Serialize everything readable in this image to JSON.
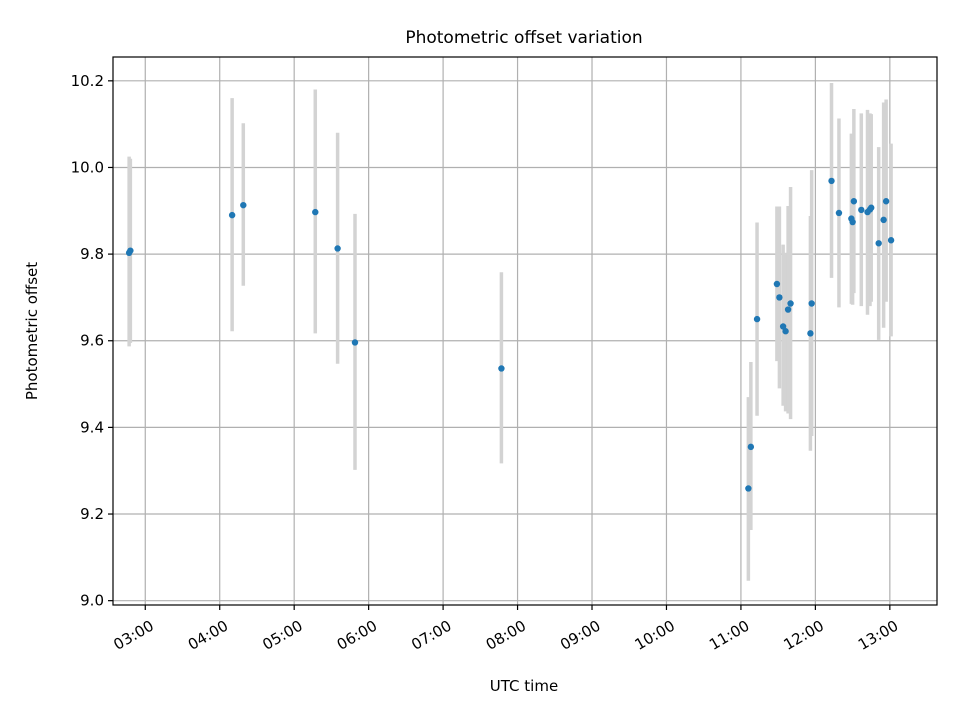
{
  "chart_data": {
    "type": "scatter",
    "title": "Photometric offset variation",
    "xlabel": "UTC time",
    "ylabel": "Photometric offset",
    "xlim": [
      "02:34",
      "13:38"
    ],
    "ylim": [
      8.99,
      10.255
    ],
    "x_ticks": [
      "03:00",
      "04:00",
      "05:00",
      "06:00",
      "07:00",
      "08:00",
      "09:00",
      "10:00",
      "11:00",
      "12:00",
      "13:00"
    ],
    "y_ticks": [
      "9.0",
      "9.2",
      "9.4",
      "9.6",
      "9.8",
      "10.0",
      "10.2"
    ],
    "grid": true,
    "errorbar_color": "#d3d3d3",
    "point_color": "#1f77b4",
    "series": [
      {
        "points": [
          {
            "time": "02:47",
            "y": 9.803,
            "lo": 9.587,
            "hi": 10.025
          },
          {
            "time": "02:48",
            "y": 9.808,
            "lo": 9.595,
            "hi": 10.02
          },
          {
            "time": "04:10",
            "y": 9.89,
            "lo": 9.622,
            "hi": 10.16
          },
          {
            "time": "04:19",
            "y": 9.913,
            "lo": 9.727,
            "hi": 10.102
          },
          {
            "time": "05:17",
            "y": 9.897,
            "lo": 9.617,
            "hi": 10.18
          },
          {
            "time": "05:35",
            "y": 9.813,
            "lo": 9.547,
            "hi": 10.08
          },
          {
            "time": "05:49",
            "y": 9.596,
            "lo": 9.302,
            "hi": 9.893
          },
          {
            "time": "07:47",
            "y": 9.536,
            "lo": 9.317,
            "hi": 9.758
          },
          {
            "time": "11:06",
            "y": 9.259,
            "lo": 9.046,
            "hi": 9.47
          },
          {
            "time": "11:08",
            "y": 9.355,
            "lo": 9.163,
            "hi": 9.551
          },
          {
            "time": "11:13",
            "y": 9.65,
            "lo": 9.427,
            "hi": 9.873
          },
          {
            "time": "11:29",
            "y": 9.731,
            "lo": 9.553,
            "hi": 9.91
          },
          {
            "time": "11:31",
            "y": 9.7,
            "lo": 9.49,
            "hi": 9.91
          },
          {
            "time": "11:34",
            "y": 9.633,
            "lo": 9.45,
            "hi": 9.822
          },
          {
            "time": "11:36",
            "y": 9.622,
            "lo": 9.437,
            "hi": 9.803
          },
          {
            "time": "11:38",
            "y": 9.672,
            "lo": 9.432,
            "hi": 9.911
          },
          {
            "time": "11:40",
            "y": 9.686,
            "lo": 9.419,
            "hi": 9.955
          },
          {
            "time": "11:56",
            "y": 9.617,
            "lo": 9.346,
            "hi": 9.888
          },
          {
            "time": "11:57",
            "y": 9.686,
            "lo": 9.38,
            "hi": 9.994
          },
          {
            "time": "12:13",
            "y": 9.969,
            "lo": 9.745,
            "hi": 10.195
          },
          {
            "time": "12:19",
            "y": 9.895,
            "lo": 9.677,
            "hi": 10.113
          },
          {
            "time": "12:29",
            "y": 9.882,
            "lo": 9.685,
            "hi": 10.078
          },
          {
            "time": "12:30",
            "y": 9.874,
            "lo": 9.683,
            "hi": 10.068
          },
          {
            "time": "12:31",
            "y": 9.922,
            "lo": 9.71,
            "hi": 10.135
          },
          {
            "time": "12:37",
            "y": 9.902,
            "lo": 9.68,
            "hi": 10.125
          },
          {
            "time": "12:42",
            "y": 9.897,
            "lo": 9.66,
            "hi": 10.133
          },
          {
            "time": "12:44",
            "y": 9.903,
            "lo": 9.68,
            "hi": 10.125
          },
          {
            "time": "12:45",
            "y": 9.907,
            "lo": 9.69,
            "hi": 10.123
          },
          {
            "time": "12:51",
            "y": 9.825,
            "lo": 9.602,
            "hi": 10.047
          },
          {
            "time": "12:55",
            "y": 9.879,
            "lo": 9.63,
            "hi": 10.15
          },
          {
            "time": "12:57",
            "y": 9.922,
            "lo": 9.69,
            "hi": 10.157
          },
          {
            "time": "13:01",
            "y": 9.832,
            "lo": 9.61,
            "hi": 10.055
          }
        ]
      }
    ]
  }
}
